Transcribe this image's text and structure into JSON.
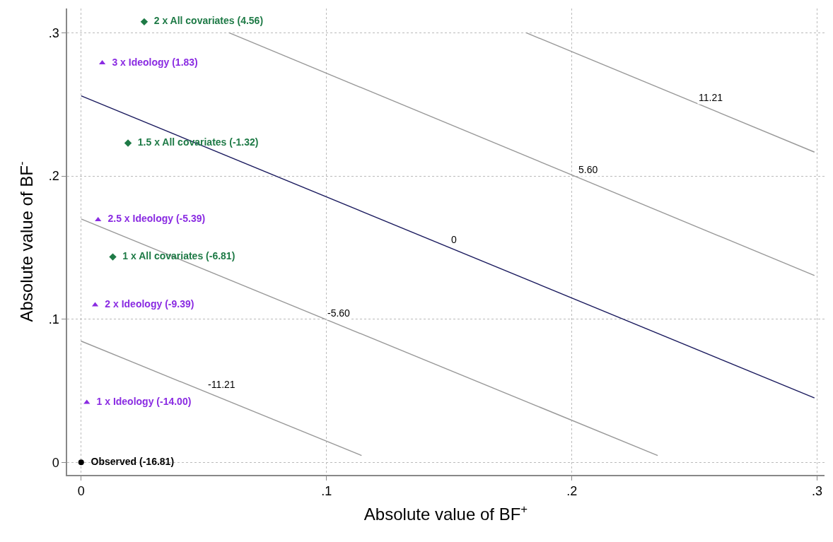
{
  "chart_data": {
    "type": "scatter",
    "xlabel": "Absolute value of BF$^{+}$",
    "ylabel": "Absolute value of BF$^{-}$",
    "xlim": [
      -0.0057,
      0.303
    ],
    "ylim": [
      -0.0087,
      0.317
    ],
    "xticks": [
      {
        "value": 0,
        "label": "0"
      },
      {
        "value": 0.1,
        "label": ".1"
      },
      {
        "value": 0.2,
        "label": ".2"
      },
      {
        "value": 0.3,
        "label": ".3"
      }
    ],
    "yticks": [
      {
        "value": 0,
        "label": "0"
      },
      {
        "value": 0.1,
        "label": ".1"
      },
      {
        "value": 0.2,
        "label": ".2"
      },
      {
        "value": 0.3,
        "label": ".3"
      }
    ],
    "grid": true,
    "legend": false,
    "series": [
      {
        "type": "line",
        "color": "#999999",
        "x": [
          0,
          0.1143
        ],
        "values": [
          0.0847,
          0.0048
        ]
      },
      {
        "type": "line",
        "color": "#999999",
        "x": [
          0,
          0.235
        ],
        "values": [
          0.17,
          0.0048
        ]
      },
      {
        "type": "line",
        "color": "#1a1a5e",
        "x": [
          0,
          0.2989
        ],
        "values": [
          0.256,
          0.045
        ]
      },
      {
        "type": "line",
        "color": "#999999",
        "x": [
          0.0603,
          0.2989
        ],
        "values": [
          0.3,
          0.1305
        ]
      },
      {
        "type": "line",
        "color": "#999999",
        "x": [
          0.1814,
          0.2989
        ],
        "values": [
          0.3,
          0.2167
        ]
      },
      {
        "name": "Observed (-16.81)",
        "color": "#000000",
        "marker": "circle",
        "x": [
          0
        ],
        "values": [
          0
        ]
      },
      {
        "name": "1 x Ideology (-14.00)",
        "color": "#8a2be2",
        "marker": "triangle",
        "x": [
          0.0023
        ],
        "values": [
          0.0419
        ]
      },
      {
        "name": "2 x Ideology (-9.39)",
        "color": "#8a2be2",
        "marker": "triangle",
        "x": [
          0.0057
        ],
        "values": [
          0.11
        ]
      },
      {
        "name": "2.5 x Ideology (-5.39)",
        "color": "#8a2be2",
        "marker": "triangle",
        "x": [
          0.0069
        ],
        "values": [
          0.1695
        ]
      },
      {
        "name": "3 x Ideology (1.83)",
        "color": "#8a2be2",
        "marker": "triangle",
        "x": [
          0.0086
        ],
        "values": [
          0.279
        ]
      },
      {
        "name": "1 x All covariates (-6.81)",
        "color": "#1e7a46",
        "marker": "diamond",
        "x": [
          0.0129
        ],
        "values": [
          0.1435
        ]
      },
      {
        "name": "1.5 x All covariates (-1.32)",
        "color": "#1e7a46",
        "marker": "diamond",
        "x": [
          0.0191
        ],
        "values": [
          0.223
        ]
      },
      {
        "name": "2 x All covariates (4.56)",
        "color": "#1e7a46",
        "marker": "diamond",
        "x": [
          0.0257
        ],
        "values": [
          0.3077
        ]
      }
    ],
    "annotations": [
      {
        "text": "-11.21",
        "x": 0.0574,
        "y": 0.0544
      },
      {
        "text": "-5.60",
        "x": 0.105,
        "y": 0.1045
      },
      {
        "text": "0",
        "x": 0.152,
        "y": 0.1555
      },
      {
        "text": "5.60",
        "x": 0.2066,
        "y": 0.2046
      },
      {
        "text": "11.21",
        "x": 0.2566,
        "y": 0.2547
      }
    ]
  }
}
